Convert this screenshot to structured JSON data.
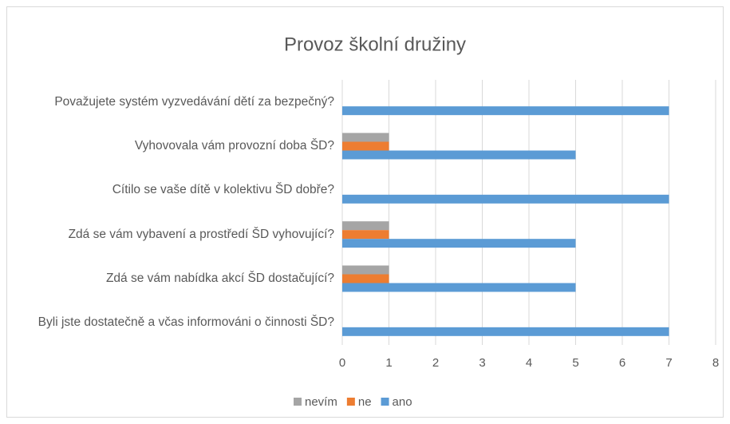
{
  "chart_data": {
    "type": "bar",
    "orientation": "horizontal",
    "title": "Provoz školní družiny",
    "categories": [
      "Považujete systém vyzvedávání dětí za bezpečný?",
      "Vyhovovala vám provozní doba ŠD?",
      "Cítilo se vaše dítě v kolektivu ŠD dobře?",
      "Zdá se vám vybavení a prostředí ŠD vyhovující?",
      "Zdá se vám nabídka akcí ŠD dostačující?",
      "Byli jste dostatečně a včas informováni o činnosti ŠD?"
    ],
    "series": [
      {
        "name": "nevím",
        "color": "#a5a5a5",
        "values": [
          0,
          1,
          0,
          1,
          1,
          0
        ]
      },
      {
        "name": "ne",
        "color": "#ed7d31",
        "values": [
          0,
          1,
          0,
          1,
          1,
          0
        ]
      },
      {
        "name": "ano",
        "color": "#5b9bd5",
        "values": [
          7,
          5,
          7,
          5,
          5,
          7
        ]
      }
    ],
    "xlim": [
      0,
      8
    ],
    "xticks": [
      0,
      1,
      2,
      3,
      4,
      5,
      6,
      7,
      8
    ],
    "grid": true,
    "legend": "bottom"
  }
}
